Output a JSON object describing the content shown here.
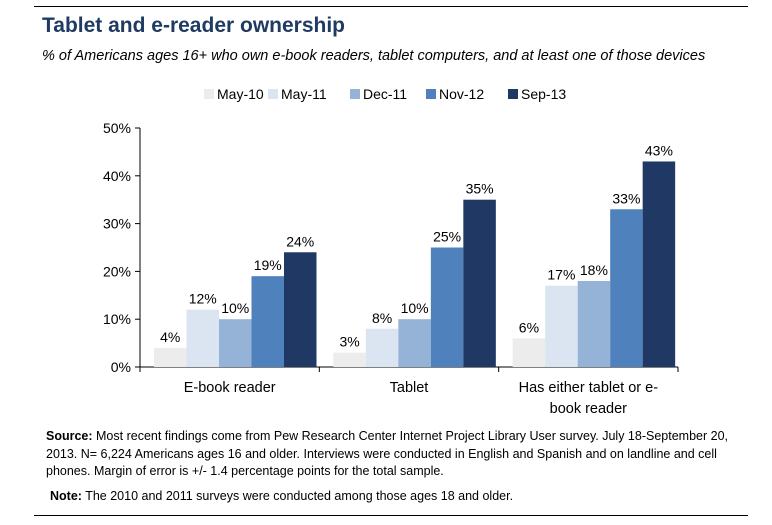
{
  "title": "Tablet and e-reader ownership",
  "subtitle": "% of Americans ages 16+ who own e-book readers, tablet computers, and at least one of those devices",
  "source_label": "Source:",
  "source_text": " Most recent findings come from Pew Research Center Internet Project Library User survey. July 18-September 20, 2013. N= 6,224 Americans ages 16 and older. Interviews were conducted in English and Spanish and on landline and cell phones. Margin of error is +/- 1.4 percentage points for the total sample.",
  "note_label": "Note:",
  "note_text": " The 2010 and 2011 surveys were conducted among those ages 18 and older.",
  "chart_data": {
    "type": "bar",
    "categories": [
      [
        "E-book reader"
      ],
      [
        "Tablet"
      ],
      [
        "Has either tablet or e-",
        "book reader"
      ]
    ],
    "series": [
      {
        "name": "May-10",
        "color": "#ececec",
        "values": [
          4,
          3,
          6
        ]
      },
      {
        "name": "May-11",
        "color": "#dbe5f1",
        "values": [
          12,
          8,
          17
        ]
      },
      {
        "name": "Dec-11",
        "color": "#95b3d7",
        "values": [
          10,
          10,
          18
        ]
      },
      {
        "name": "Nov-12",
        "color": "#4f81bd",
        "values": [
          19,
          25,
          33
        ]
      },
      {
        "name": "Sep-13",
        "color": "#1f3864",
        "values": [
          24,
          35,
          43
        ]
      }
    ],
    "y_ticks": [
      "0%",
      "10%",
      "20%",
      "30%",
      "40%",
      "50%"
    ],
    "ylim": [
      0,
      50
    ],
    "value_suffix": "%",
    "legend_position": "top",
    "grid": false
  }
}
